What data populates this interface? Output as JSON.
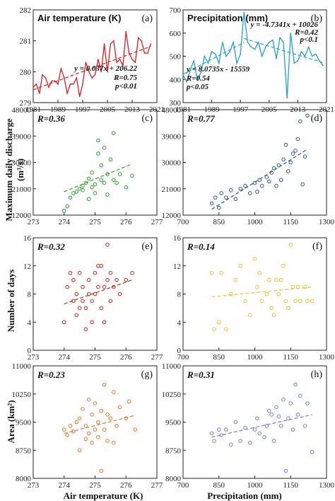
{
  "labels": {
    "ylabel_row2": "Maximum daily discharge",
    "ylabel_row2_unit": "(m³/s)",
    "ylabel_row3": "Number of days",
    "ylabel_row4": "Area (km²)",
    "xlabel_left": "Air temperature (K)",
    "xlabel_right": "Precipitation (mm)"
  },
  "chart_data": [
    {
      "panel": "(a)",
      "type": "line",
      "title": "Air temperature (K)",
      "color": "#e31a1c",
      "xlim": [
        1981,
        2021
      ],
      "ylim": [
        279,
        282
      ],
      "xticks": [
        1981,
        1989,
        1997,
        2005,
        2013,
        2021
      ],
      "yticks": [
        279,
        280,
        281,
        282
      ],
      "annotations": [
        "y = 0.037x + 206.22",
        "R=0.75",
        "p<0.01"
      ],
      "x": [
        1981,
        1982,
        1983,
        1984,
        1985,
        1986,
        1987,
        1988,
        1989,
        1990,
        1991,
        1992,
        1993,
        1994,
        1995,
        1996,
        1997,
        1998,
        1999,
        2000,
        2001,
        2002,
        2003,
        2004,
        2005,
        2006,
        2007,
        2008,
        2009,
        2010,
        2011,
        2012,
        2013,
        2014,
        2015,
        2016,
        2017,
        2018,
        2019
      ],
      "y": [
        279.5,
        279.6,
        279.3,
        279.9,
        279.8,
        279.5,
        279.7,
        279.7,
        279.6,
        280.1,
        279.8,
        279.3,
        279.6,
        279.6,
        279.8,
        279.2,
        279.6,
        280.3,
        280.0,
        279.8,
        279.9,
        280.4,
        280.0,
        280.9,
        280.0,
        280.9,
        281.0,
        280.3,
        280.4,
        280.2,
        281.3,
        280.6,
        280.4,
        280.3,
        281.1,
        281.0,
        280.6,
        280.6,
        280.9
      ],
      "trend": {
        "slope": 0.037,
        "x_range": [
          1981,
          2019
        ]
      }
    },
    {
      "panel": "(b)",
      "type": "line",
      "title": "Precipitation (mm)",
      "color": "#1f9fd6",
      "xlim": [
        1981,
        2021
      ],
      "ylim": [
        300,
        700
      ],
      "xticks": [
        1981,
        1989,
        1997,
        2005,
        2013,
        2021
      ],
      "yticks": [
        300,
        400,
        500,
        600,
        700
      ],
      "annotations": [
        "y = -4.7341x + 10026",
        "R=0.42",
        "p<0.1",
        "y = 8.0735x - 15559",
        "R=0.54",
        "p<0.05"
      ],
      "x": [
        1981,
        1982,
        1983,
        1984,
        1985,
        1986,
        1987,
        1988,
        1989,
        1990,
        1991,
        1992,
        1993,
        1994,
        1995,
        1996,
        1997,
        1998,
        1999,
        2000,
        2001,
        2002,
        2003,
        2004,
        2005,
        2006,
        2007,
        2008,
        2009,
        2010,
        2011,
        2012,
        2013,
        2014,
        2015,
        2016,
        2017,
        2018,
        2019,
        2020
      ],
      "y": [
        420,
        390,
        440,
        480,
        400,
        430,
        500,
        470,
        520,
        510,
        470,
        560,
        500,
        520,
        560,
        470,
        510,
        690,
        560,
        540,
        530,
        560,
        500,
        540,
        560,
        570,
        490,
        580,
        560,
        320,
        600,
        470,
        480,
        520,
        500,
        540,
        500,
        510,
        480,
        460
      ],
      "trends": [
        {
          "slope": 8.0735,
          "x_range": [
            1981,
            1998
          ]
        },
        {
          "slope": -4.7341,
          "x_range": [
            1998,
            2020
          ]
        }
      ]
    },
    {
      "panel": "(c)",
      "type": "scatter",
      "color": "#2ca02c",
      "xlim": [
        273,
        277
      ],
      "ylim": [
        12000,
        48000
      ],
      "xticks": [
        273,
        274,
        275,
        276,
        277
      ],
      "yticks": [
        12000,
        21000,
        30000,
        39000,
        48000
      ],
      "yticklabels": [
        "12000",
        "21000",
        "30000",
        "39000",
        "48000"
      ],
      "annotations": [
        "R=0.36"
      ],
      "points": [
        [
          274.0,
          13500
        ],
        [
          274.1,
          15000
        ],
        [
          274.2,
          18000
        ],
        [
          274.3,
          19500
        ],
        [
          274.4,
          20000
        ],
        [
          274.5,
          21000
        ],
        [
          274.6,
          22000
        ],
        [
          274.6,
          20500
        ],
        [
          274.7,
          23000
        ],
        [
          274.8,
          24500
        ],
        [
          274.8,
          17500
        ],
        [
          274.9,
          26500
        ],
        [
          274.9,
          21500
        ],
        [
          275.0,
          22500
        ],
        [
          275.0,
          19500
        ],
        [
          275.1,
          37500
        ],
        [
          275.1,
          33000
        ],
        [
          275.2,
          29000
        ],
        [
          275.2,
          24000
        ],
        [
          275.3,
          35000
        ],
        [
          275.4,
          26000
        ],
        [
          275.4,
          19000
        ],
        [
          275.5,
          31000
        ],
        [
          275.6,
          24000
        ],
        [
          275.6,
          40000
        ],
        [
          275.7,
          23000
        ],
        [
          275.8,
          26000
        ],
        [
          276.0,
          21500
        ],
        [
          276.2,
          25500
        ],
        [
          275.3,
          23000
        ]
      ],
      "trend": {
        "x_range": [
          274.0,
          276.2
        ],
        "y_range": [
          20000,
          29500
        ]
      }
    },
    {
      "panel": "(d)",
      "type": "scatter",
      "color": "#2c5a8a",
      "xlim": [
        700,
        1300
      ],
      "ylim": [
        12000,
        48000
      ],
      "xticks": [
        700,
        850,
        1000,
        1150,
        1300
      ],
      "yticks": [
        12000,
        21000,
        30000,
        39000,
        48000
      ],
      "yticklabels": [
        "12000",
        "21000",
        "30000",
        "39000",
        "48000"
      ],
      "annotations": [
        "R=0.77"
      ],
      "points": [
        [
          820,
          16000
        ],
        [
          835,
          18000
        ],
        [
          850,
          14500
        ],
        [
          860,
          19500
        ],
        [
          880,
          18000
        ],
        [
          900,
          20500
        ],
        [
          920,
          17500
        ],
        [
          940,
          21000
        ],
        [
          960,
          22000
        ],
        [
          980,
          19500
        ],
        [
          1000,
          23000
        ],
        [
          1010,
          20000
        ],
        [
          1020,
          24000
        ],
        [
          1030,
          22000
        ],
        [
          1050,
          25000
        ],
        [
          1060,
          23500
        ],
        [
          1070,
          26500
        ],
        [
          1080,
          28000
        ],
        [
          1090,
          22000
        ],
        [
          1100,
          29000
        ],
        [
          1110,
          24000
        ],
        [
          1120,
          31000
        ],
        [
          1130,
          36000
        ],
        [
          1140,
          27000
        ],
        [
          1150,
          30000
        ],
        [
          1160,
          33000
        ],
        [
          1170,
          34000
        ],
        [
          1180,
          38000
        ],
        [
          1190,
          44000
        ],
        [
          1210,
          32000
        ],
        [
          1220,
          46000
        ],
        [
          1200,
          22500
        ]
      ],
      "trend": {
        "x_range": [
          820,
          1220
        ],
        "y_range": [
          14000,
          34500
        ]
      }
    },
    {
      "panel": "(e)",
      "type": "scatter",
      "color": "#c0281b",
      "xlim": [
        273,
        277
      ],
      "ylim": [
        0,
        16
      ],
      "xticks": [
        273,
        274,
        275,
        276,
        277
      ],
      "yticks": [
        0,
        4,
        8,
        12,
        16
      ],
      "annotations": [
        "R=0.32"
      ],
      "points": [
        [
          274.0,
          4
        ],
        [
          274.1,
          9
        ],
        [
          274.2,
          11
        ],
        [
          274.3,
          10
        ],
        [
          274.3,
          7
        ],
        [
          274.4,
          5
        ],
        [
          274.4,
          8
        ],
        [
          274.5,
          6
        ],
        [
          274.5,
          11
        ],
        [
          274.6,
          7
        ],
        [
          274.6,
          9
        ],
        [
          274.7,
          3
        ],
        [
          274.7,
          6
        ],
        [
          274.8,
          8
        ],
        [
          274.8,
          10
        ],
        [
          274.9,
          4
        ],
        [
          274.9,
          7
        ],
        [
          275.0,
          8
        ],
        [
          275.0,
          11
        ],
        [
          275.1,
          9
        ],
        [
          275.1,
          12
        ],
        [
          275.2,
          12
        ],
        [
          275.2,
          6
        ],
        [
          275.3,
          9
        ],
        [
          275.3,
          4
        ],
        [
          275.4,
          10
        ],
        [
          275.4,
          15
        ],
        [
          275.5,
          7
        ],
        [
          275.5,
          11
        ],
        [
          275.6,
          9
        ],
        [
          275.7,
          10
        ],
        [
          275.8,
          8
        ],
        [
          276.0,
          10
        ],
        [
          276.2,
          11
        ]
      ],
      "trend": {
        "x_range": [
          274.0,
          276.2
        ],
        "y_range": [
          6.6,
          10.0
        ]
      }
    },
    {
      "panel": "(f)",
      "type": "scatter",
      "color": "#f2c12e",
      "xlim": [
        700,
        1300
      ],
      "ylim": [
        0,
        16
      ],
      "xticks": [
        700,
        850,
        1000,
        1150,
        1300
      ],
      "yticks": [
        0,
        4,
        8,
        12,
        16
      ],
      "annotations": [
        "R=0.14"
      ],
      "points": [
        [
          820,
          11
        ],
        [
          830,
          3
        ],
        [
          850,
          4
        ],
        [
          860,
          11
        ],
        [
          880,
          3
        ],
        [
          900,
          8
        ],
        [
          920,
          10
        ],
        [
          940,
          12
        ],
        [
          960,
          7
        ],
        [
          980,
          5
        ],
        [
          1000,
          13
        ],
        [
          1010,
          9
        ],
        [
          1020,
          11
        ],
        [
          1030,
          7
        ],
        [
          1050,
          8
        ],
        [
          1060,
          10
        ],
        [
          1070,
          6
        ],
        [
          1080,
          5
        ],
        [
          1090,
          10
        ],
        [
          1100,
          8
        ],
        [
          1110,
          10
        ],
        [
          1120,
          12
        ],
        [
          1130,
          7
        ],
        [
          1140,
          6
        ],
        [
          1150,
          15
        ],
        [
          1160,
          9
        ],
        [
          1170,
          7
        ],
        [
          1180,
          9
        ],
        [
          1190,
          7
        ],
        [
          1210,
          9
        ],
        [
          1220,
          7
        ],
        [
          1240,
          7
        ]
      ],
      "trend": {
        "x_range": [
          820,
          1240
        ],
        "y_range": [
          7.6,
          9.0
        ]
      }
    },
    {
      "panel": "(g)",
      "type": "scatter",
      "color": "#e8772e",
      "xlim": [
        273,
        277
      ],
      "ylim": [
        8000,
        11000
      ],
      "xticks": [
        273,
        274,
        275,
        276,
        277
      ],
      "yticks": [
        8000,
        8750,
        9500,
        10250,
        11000
      ],
      "annotations": [
        "R=0.23"
      ],
      "points": [
        [
          274.0,
          9300
        ],
        [
          274.1,
          9150
        ],
        [
          274.2,
          9400
        ],
        [
          274.3,
          9250
        ],
        [
          274.4,
          9500
        ],
        [
          274.5,
          8750
        ],
        [
          274.5,
          9600
        ],
        [
          274.6,
          9850
        ],
        [
          274.7,
          9400
        ],
        [
          274.7,
          9050
        ],
        [
          274.8,
          9200
        ],
        [
          274.8,
          10100
        ],
        [
          274.9,
          9700
        ],
        [
          274.9,
          8950
        ],
        [
          275.0,
          9300
        ],
        [
          275.0,
          10000
        ],
        [
          275.1,
          9500
        ],
        [
          275.1,
          9100
        ],
        [
          275.2,
          8200
        ],
        [
          275.2,
          9800
        ],
        [
          275.3,
          10500
        ],
        [
          275.3,
          9300
        ],
        [
          275.4,
          9000
        ],
        [
          275.4,
          9700
        ],
        [
          275.5,
          9600
        ],
        [
          275.6,
          8950
        ],
        [
          275.6,
          10300
        ],
        [
          275.7,
          9400
        ],
        [
          275.8,
          9900
        ],
        [
          276.0,
          9600
        ],
        [
          276.1,
          10050
        ],
        [
          276.3,
          9300
        ]
      ],
      "trend": {
        "x_range": [
          274.0,
          276.3
        ],
        "y_range": [
          9200,
          9680
        ]
      }
    },
    {
      "panel": "(h)",
      "type": "scatter",
      "color": "#7b7be0",
      "xlim": [
        700,
        1300
      ],
      "ylim": [
        8000,
        11000
      ],
      "xticks": [
        700,
        850,
        1000,
        1150,
        1300
      ],
      "yticks": [
        8000,
        8750,
        9500,
        10250,
        11000
      ],
      "annotations": [
        "R=0.31"
      ],
      "points": [
        [
          820,
          9200
        ],
        [
          830,
          9000
        ],
        [
          850,
          9300
        ],
        [
          860,
          9150
        ],
        [
          880,
          9300
        ],
        [
          900,
          8900
        ],
        [
          920,
          9500
        ],
        [
          940,
          9000
        ],
        [
          960,
          9350
        ],
        [
          980,
          8950
        ],
        [
          1000,
          9300
        ],
        [
          1010,
          9600
        ],
        [
          1020,
          9200
        ],
        [
          1040,
          9100
        ],
        [
          1050,
          9400
        ],
        [
          1060,
          9800
        ],
        [
          1070,
          9700
        ],
        [
          1080,
          9000
        ],
        [
          1090,
          9900
        ],
        [
          1100,
          9650
        ],
        [
          1110,
          9400
        ],
        [
          1120,
          10100
        ],
        [
          1130,
          8200
        ],
        [
          1140,
          9600
        ],
        [
          1150,
          10000
        ],
        [
          1160,
          9300
        ],
        [
          1170,
          10500
        ],
        [
          1180,
          9700
        ],
        [
          1190,
          10200
        ],
        [
          1210,
          9400
        ],
        [
          1220,
          10000
        ],
        [
          1240,
          8700
        ]
      ],
      "trend": {
        "x_range": [
          820,
          1240
        ],
        "y_range": [
          9100,
          9700
        ]
      }
    }
  ]
}
